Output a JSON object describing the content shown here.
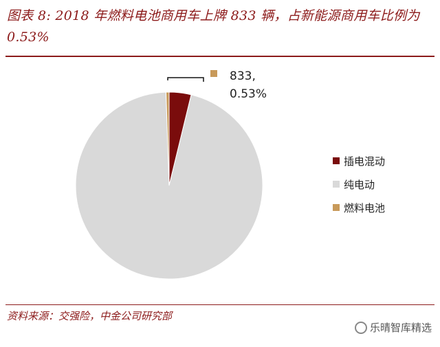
{
  "title": "图表 8: 2018 年燃料电池商用车上牌 833 辆，占新能源商用车比例为 0.53%",
  "source": "资料来源：交强险，中金公司研究部",
  "watermark": "乐晴智库精选",
  "chart_data": {
    "type": "pie",
    "title": "",
    "slices": [
      {
        "name": "插电混动",
        "value": 3.8,
        "color": "#7a0c0c"
      },
      {
        "name": "纯电动",
        "value": 95.67,
        "color": "#d9d9d9"
      },
      {
        "name": "燃料电池",
        "value": 0.53,
        "color": "#c89a5a"
      }
    ],
    "data_labels": {
      "燃料电池": {
        "line1": "833,",
        "line2": "0.53%"
      }
    },
    "legend": {
      "placement": "right",
      "entries": [
        "插电混动",
        "纯电动",
        "燃料电池"
      ]
    }
  }
}
